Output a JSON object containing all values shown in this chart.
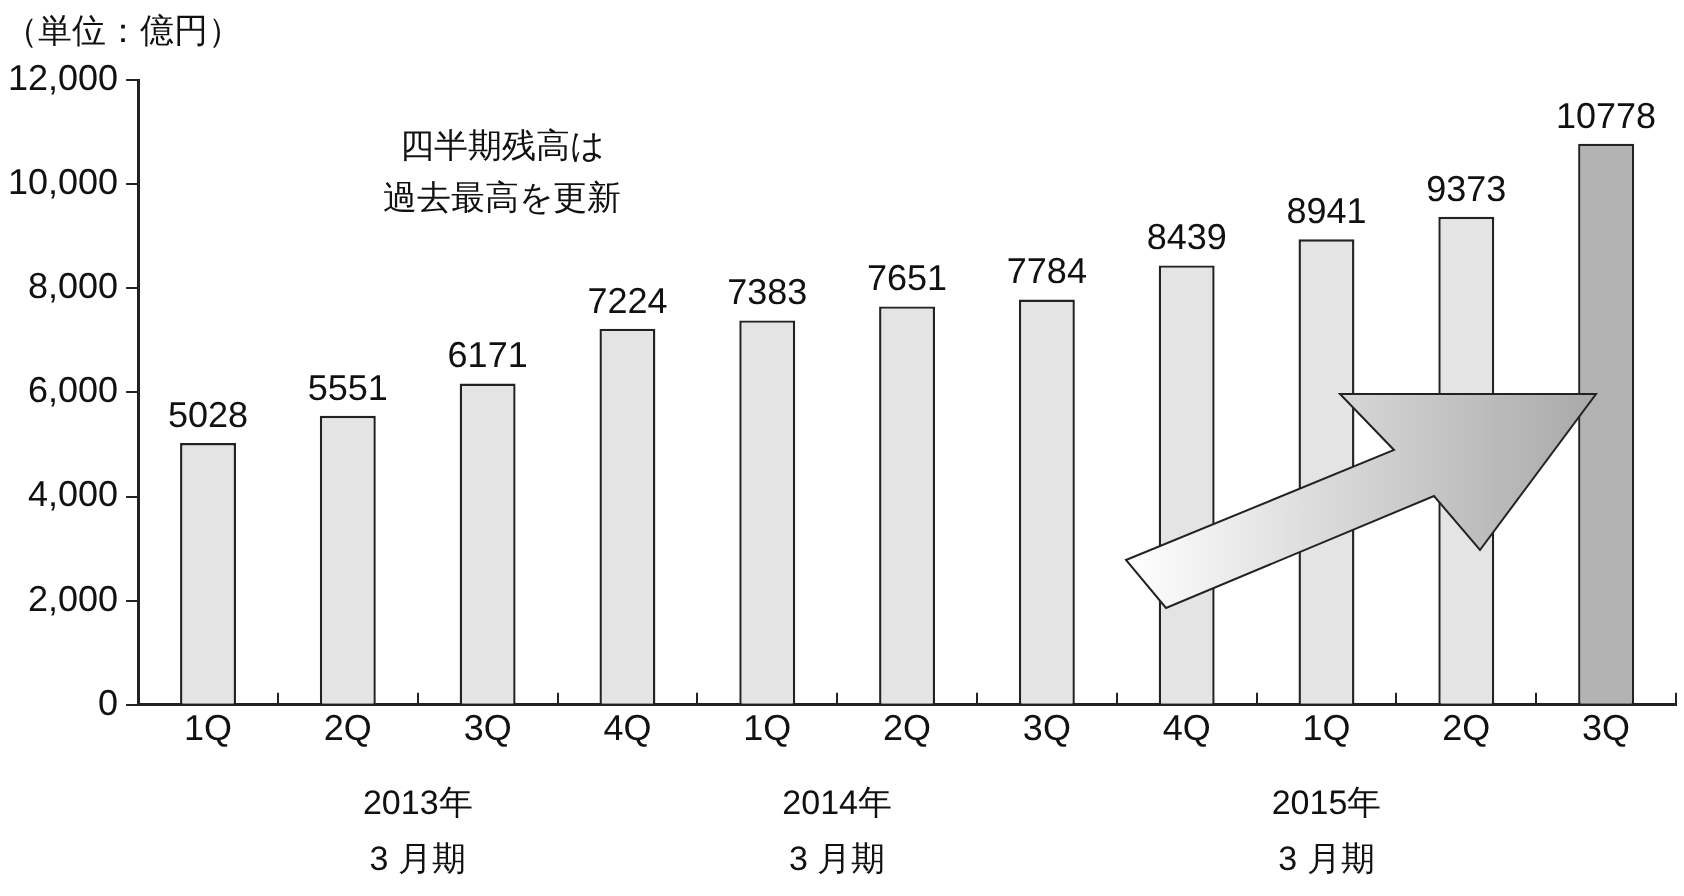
{
  "chart_data": {
    "type": "bar",
    "ylabel": "（単位：億円）",
    "categories": [
      "1Q",
      "2Q",
      "3Q",
      "4Q",
      "1Q",
      "2Q",
      "3Q",
      "4Q",
      "1Q",
      "2Q",
      "3Q"
    ],
    "values": [
      5028,
      5551,
      6171,
      7224,
      7383,
      7651,
      7784,
      8439,
      8941,
      9373,
      10778
    ],
    "colors": [
      "#e4e4e4",
      "#e4e4e4",
      "#e4e4e4",
      "#e4e4e4",
      "#e4e4e4",
      "#e4e4e4",
      "#e4e4e4",
      "#e4e4e4",
      "#e4e4e4",
      "#e4e4e4",
      "#b3b3b3"
    ],
    "ylim": [
      0,
      12000
    ],
    "yticks": [
      {
        "value": 0,
        "label": "0"
      },
      {
        "value": 2000,
        "label": "2,000"
      },
      {
        "value": 4000,
        "label": "4,000"
      },
      {
        "value": 6000,
        "label": "6,000"
      },
      {
        "value": 8000,
        "label": "8,000"
      },
      {
        "value": 10000,
        "label": "10,000"
      },
      {
        "value": 12000,
        "label": "12,000"
      }
    ],
    "data_labels": true,
    "grid": false,
    "legend": false,
    "annotations": [
      "四半期残高は",
      "過去最高を更新",
      "2013年",
      "3 月期",
      "2014年",
      "3 月期",
      "2015年",
      "3 月期"
    ]
  }
}
